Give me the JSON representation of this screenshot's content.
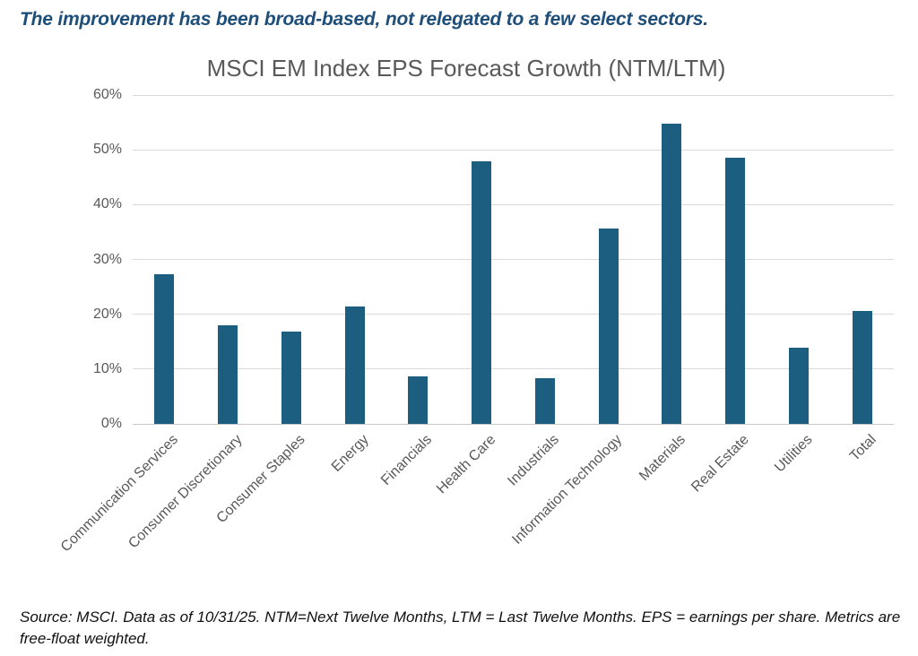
{
  "headline": "The improvement has been broad-based, not relegated to a few select sectors.",
  "footer": "Source: MSCI. Data as of 10/31/25. NTM=Next Twelve Months, LTM = Last Twelve Months. EPS = earnings per share.  Metrics are free-float weighted.",
  "colors": {
    "headline_text": "#1f4e79",
    "bar_fill": "#1b5e80",
    "axis_text": "#595959",
    "title_text": "#595959",
    "gridline": "#d9d9d9",
    "footer_text": "#111111"
  },
  "chart_data": {
    "type": "bar",
    "title": "MSCI EM Index EPS Forecast Growth (NTM/LTM)",
    "categories": [
      "Communication Services",
      "Consumer Discretionary",
      "Consumer Staples",
      "Energy",
      "Financials",
      "Health Care",
      "Industrials",
      "Information Technology",
      "Materials",
      "Real Estate",
      "Utilities",
      "Total"
    ],
    "values": [
      27.3,
      18.0,
      16.8,
      21.5,
      8.7,
      47.9,
      8.3,
      35.6,
      54.7,
      48.5,
      13.9,
      20.6
    ],
    "unit": "%",
    "y_ticks": [
      "0%",
      "10%",
      "20%",
      "30%",
      "40%",
      "50%",
      "60%"
    ],
    "ylim": [
      0,
      60
    ],
    "grid": true,
    "legend": "none",
    "bar_color": "#1b5e80",
    "x_label_rotation_deg": -45
  }
}
